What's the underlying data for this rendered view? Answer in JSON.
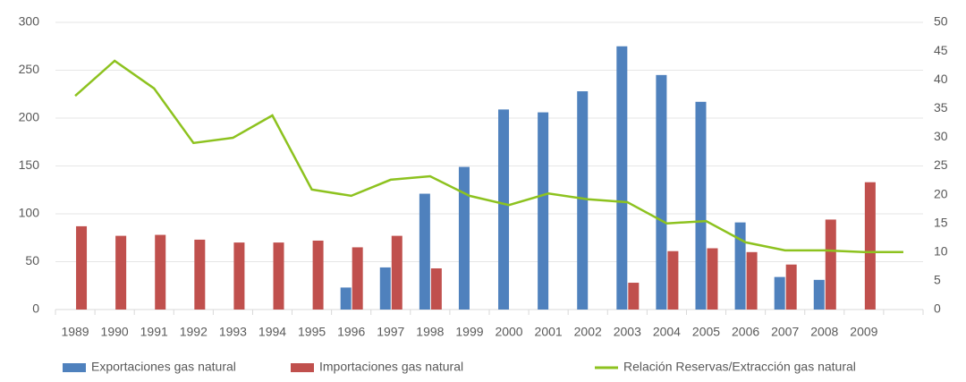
{
  "chart_data": {
    "type": "bar",
    "categories": [
      "1989",
      "1990",
      "1991",
      "1992",
      "1993",
      "1994",
      "1995",
      "1996",
      "1997",
      "1998",
      "1999",
      "2000",
      "2001",
      "2002",
      "2003",
      "2004",
      "2005",
      "2006",
      "2007",
      "2008",
      "2009",
      null
    ],
    "series": [
      {
        "name": "Exportaciones gas natural",
        "color": "#4f81bd",
        "type": "bar",
        "values": [
          null,
          null,
          null,
          null,
          null,
          null,
          null,
          23,
          44,
          121,
          149,
          209,
          206,
          228,
          275,
          245,
          217,
          91,
          34,
          31,
          null,
          null
        ]
      },
      {
        "name": "Importaciones gas natural",
        "color": "#c0504d",
        "type": "bar",
        "values": [
          87,
          77,
          78,
          73,
          70,
          70,
          72,
          65,
          77,
          43,
          null,
          null,
          null,
          null,
          28,
          61,
          64,
          60,
          47,
          94,
          133,
          null
        ]
      },
      {
        "name": "Relación Reservas/Extracción gas natural",
        "color": "#8dc21f",
        "type": "line",
        "axis": "y2",
        "values": [
          37.2,
          43.3,
          38.5,
          29,
          29.9,
          33.8,
          20.9,
          19.8,
          22.6,
          23.2,
          19.8,
          18.2,
          20.2,
          19.2,
          18.7,
          15,
          15.4,
          11.7,
          10.3,
          10.3,
          10,
          10
        ]
      }
    ],
    "ylim": [
      0,
      300
    ],
    "yticks": [
      0,
      50,
      100,
      150,
      200,
      250,
      300
    ],
    "y2lim": [
      0,
      50
    ],
    "y2ticks": [
      0,
      5,
      10,
      15,
      20,
      25,
      30,
      35,
      40,
      45,
      50
    ],
    "grid": true,
    "legend": "bottom"
  }
}
